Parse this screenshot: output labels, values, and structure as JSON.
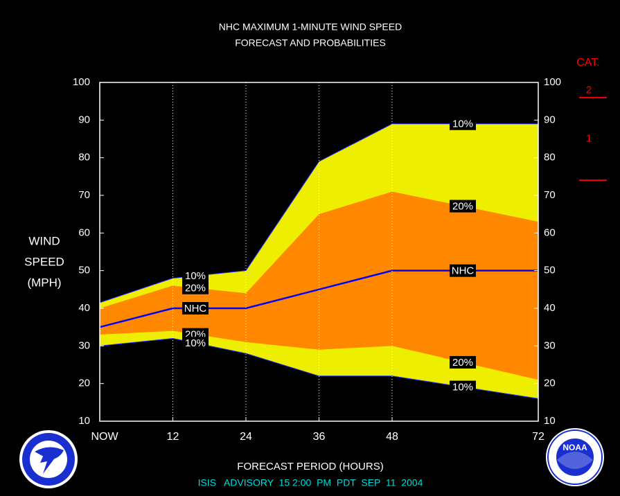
{
  "chart_data": {
    "type": "area",
    "title": "NHC MAXIMUM 1-MINUTE WIND SPEED",
    "subtitle": "FORECAST AND PROBABILITIES",
    "ylabel": [
      "WIND",
      "SPEED",
      "(MPH)"
    ],
    "xlabel": "FORECAST PERIOD (HOURS)",
    "footer": "ISIS   ADVISORY  15 2:00  PM  PDT  SEP  11  2004",
    "x": [
      0,
      12,
      24,
      36,
      48,
      72
    ],
    "xlim": [
      0,
      72
    ],
    "xticks": [
      {
        "value": 0,
        "label": "NOW"
      },
      12,
      24,
      36,
      48,
      72
    ],
    "ylim": [
      10,
      100
    ],
    "yticks": [
      10,
      20,
      30,
      40,
      50,
      60,
      70,
      80,
      90,
      100
    ],
    "y2lim": [
      10,
      100
    ],
    "y2ticks": [
      10,
      20,
      30,
      40,
      50,
      60,
      70,
      80,
      90,
      100
    ],
    "xgrid": true,
    "series": [
      {
        "name": "10%",
        "color": "#eeee00",
        "values": [
          41.5,
          48,
          50,
          79,
          89,
          89
        ]
      },
      {
        "name": "20%",
        "color": "#ff8800",
        "values": [
          40,
          46,
          44,
          65,
          71,
          63
        ]
      },
      {
        "name": "NHC",
        "color": "#0000ff",
        "values": [
          35,
          40,
          40,
          45,
          50,
          50
        ]
      },
      {
        "name": "20%",
        "color": "#ff8800",
        "values": [
          33,
          34,
          31,
          29,
          30,
          21
        ]
      },
      {
        "name": "10%",
        "color": "#eeee00",
        "values": [
          30,
          32,
          28,
          22,
          22,
          16
        ]
      }
    ],
    "category_scale": {
      "title": "CAT.",
      "color": "#ff0000",
      "levels": [
        {
          "label": "1",
          "min": 74
        },
        {
          "label": "2",
          "min": 96
        }
      ]
    },
    "logo_text": "NOAA"
  }
}
